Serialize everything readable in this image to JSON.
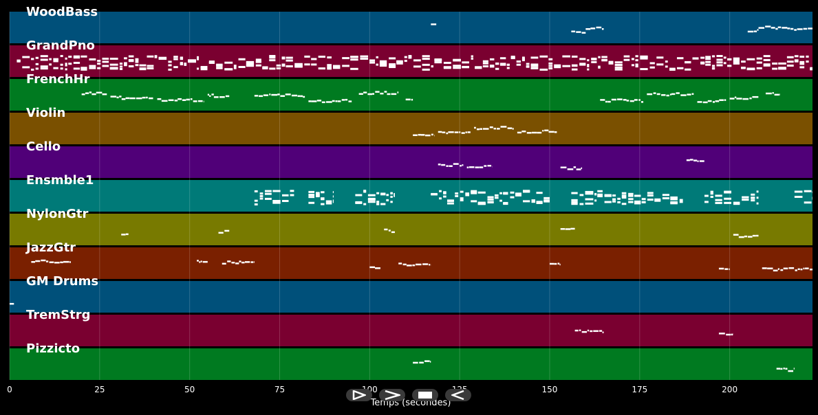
{
  "tracks": [
    {
      "name": "WoodBass",
      "color": "#00507a"
    },
    {
      "name": "GrandPno",
      "color": "#7a0030"
    },
    {
      "name": "FrenchHr",
      "color": "#007a20"
    },
    {
      "name": "Violin",
      "color": "#7a5000"
    },
    {
      "name": "Cello",
      "color": "#500078"
    },
    {
      "name": "Ensmble1",
      "color": "#007a78"
    },
    {
      "name": "NylonGtr",
      "color": "#787a00"
    },
    {
      "name": "JazzGtr",
      "color": "#7a2000"
    },
    {
      "name": "GM Drums",
      "color": "#00507a"
    },
    {
      "name": "TremStrg",
      "color": "#7a0030"
    },
    {
      "name": "Pizzicto",
      "color": "#007a20"
    }
  ],
  "axis": {
    "xlabel": "Temps (secondes)",
    "ticks": [
      "0",
      "25",
      "50",
      "75",
      "100",
      "125",
      "150",
      "175",
      "200"
    ],
    "tick_values": [
      0,
      25,
      50,
      75,
      100,
      125,
      150,
      175,
      200
    ],
    "x_max": 223
  },
  "controls": [
    {
      "name": "play-icon"
    },
    {
      "name": "fast-forward-icon"
    },
    {
      "name": "stop-icon"
    },
    {
      "name": "rewind-icon"
    }
  ],
  "notes": [
    {
      "track": 0,
      "segments": [
        [
          117,
          118.5
        ],
        [
          156,
          160
        ],
        [
          160,
          165
        ],
        [
          205,
          208
        ],
        [
          208,
          216
        ],
        [
          216,
          223
        ]
      ]
    },
    {
      "track": 1,
      "dense": [
        [
          2,
          223
        ]
      ]
    },
    {
      "track": 2,
      "segments": [
        [
          20,
          27
        ],
        [
          28,
          40
        ],
        [
          41,
          54
        ],
        [
          55,
          61
        ],
        [
          68,
          82
        ],
        [
          83,
          95
        ],
        [
          97,
          108
        ],
        [
          110,
          112
        ],
        [
          164,
          176
        ],
        [
          177,
          190
        ],
        [
          191,
          199
        ],
        [
          200,
          208
        ],
        [
          210,
          214
        ]
      ]
    },
    {
      "track": 3,
      "segments": [
        [
          112,
          118
        ],
        [
          119,
          128
        ],
        [
          129,
          140
        ],
        [
          141,
          152
        ]
      ]
    },
    {
      "track": 4,
      "segments": [
        [
          119,
          126
        ],
        [
          127,
          134
        ],
        [
          153,
          159
        ],
        [
          188,
          193
        ]
      ]
    },
    {
      "track": 5,
      "dense": [
        [
          68,
          79
        ],
        [
          83,
          90
        ],
        [
          96,
          107
        ],
        [
          117,
          150
        ],
        [
          156,
          187
        ],
        [
          193,
          208
        ],
        [
          218,
          223
        ]
      ]
    },
    {
      "track": 6,
      "segments": [
        [
          31,
          33
        ],
        [
          58,
          61
        ],
        [
          104,
          107
        ],
        [
          153,
          157
        ],
        [
          201,
          208
        ]
      ]
    },
    {
      "track": 7,
      "segments": [
        [
          6,
          17
        ],
        [
          52,
          55
        ],
        [
          59,
          68
        ],
        [
          100,
          103
        ],
        [
          108,
          117
        ],
        [
          150,
          153
        ],
        [
          197,
          200
        ],
        [
          209,
          223
        ]
      ]
    },
    {
      "track": 8,
      "segments": [
        [
          0,
          1.2
        ]
      ]
    },
    {
      "track": 9,
      "segments": [
        [
          157,
          165
        ],
        [
          197,
          201
        ]
      ]
    },
    {
      "track": 10,
      "segments": [
        [
          112,
          117
        ],
        [
          213,
          218
        ]
      ]
    }
  ]
}
